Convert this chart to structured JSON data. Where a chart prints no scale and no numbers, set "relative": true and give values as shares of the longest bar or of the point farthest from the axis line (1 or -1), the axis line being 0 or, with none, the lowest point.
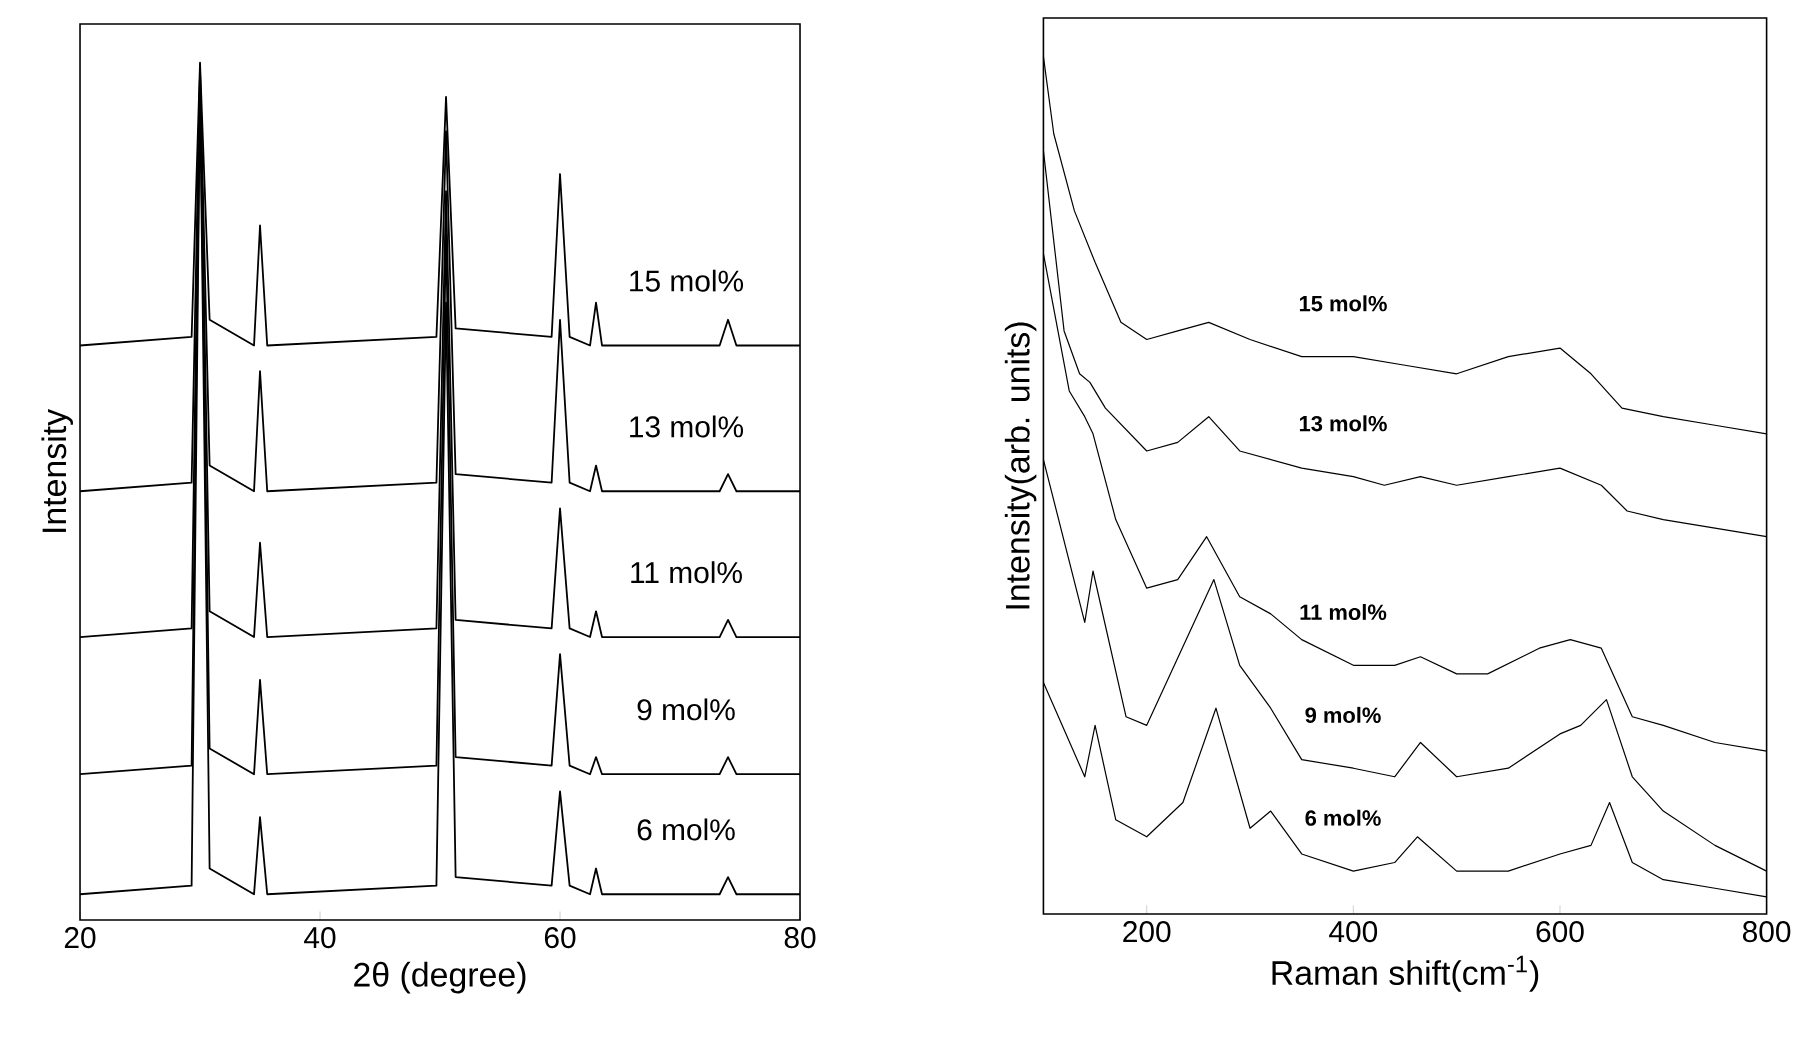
{
  "chart_data": [
    {
      "type": "line",
      "relative": true,
      "xlabel": "2θ (degree)",
      "ylabel": "Intensity",
      "xlim": [
        20,
        80
      ],
      "xticks": [
        20,
        40,
        60,
        80
      ],
      "x": [
        20,
        29.3,
        30,
        30.8,
        34.5,
        35,
        35.6,
        49.7,
        50.5,
        51.3,
        59.3,
        60,
        60.8,
        62.5,
        63,
        63.5,
        73.3,
        74,
        74.7,
        80
      ],
      "series": [
        {
          "name": "15 mol%",
          "color": "#000000",
          "values": [
            0.67,
            0.68,
            1.0,
            0.7,
            0.67,
            0.81,
            0.67,
            0.68,
            0.96,
            0.69,
            0.68,
            0.87,
            0.68,
            0.67,
            0.72,
            0.67,
            0.67,
            0.7,
            0.67,
            0.67
          ]
        },
        {
          "name": "13 mol%",
          "color": "#000000",
          "values": [
            0.5,
            0.51,
            0.99,
            0.53,
            0.5,
            0.64,
            0.5,
            0.51,
            0.92,
            0.52,
            0.51,
            0.7,
            0.51,
            0.5,
            0.53,
            0.5,
            0.5,
            0.52,
            0.5,
            0.5
          ]
        },
        {
          "name": "11 mol%",
          "color": "#000000",
          "values": [
            0.33,
            0.34,
            0.99,
            0.36,
            0.33,
            0.44,
            0.33,
            0.34,
            0.85,
            0.35,
            0.34,
            0.48,
            0.34,
            0.33,
            0.36,
            0.33,
            0.33,
            0.35,
            0.33,
            0.33
          ]
        },
        {
          "name": "9 mol%",
          "color": "#000000",
          "values": [
            0.17,
            0.18,
            0.98,
            0.2,
            0.17,
            0.28,
            0.17,
            0.18,
            0.8,
            0.19,
            0.18,
            0.31,
            0.18,
            0.17,
            0.19,
            0.17,
            0.17,
            0.19,
            0.17,
            0.17
          ]
        },
        {
          "name": "6 mol%",
          "color": "#000000",
          "values": [
            0.03,
            0.04,
            0.97,
            0.06,
            0.03,
            0.12,
            0.03,
            0.04,
            0.72,
            0.05,
            0.04,
            0.15,
            0.04,
            0.03,
            0.06,
            0.03,
            0.03,
            0.05,
            0.03,
            0.03
          ]
        }
      ]
    },
    {
      "type": "line",
      "relative": true,
      "xlabel": "Raman shift(cm$^{-1}$)",
      "ylabel": "Intensity(arb. units)",
      "xlim": [
        100,
        800
      ],
      "xticks": [
        200,
        400,
        600,
        800
      ],
      "series": [
        {
          "name": "15 mol%",
          "color": "#000000",
          "x": [
            100,
            110,
            130,
            150,
            175,
            200,
            230,
            260,
            300,
            350,
            400,
            450,
            500,
            550,
            600,
            630,
            660,
            700,
            750,
            800
          ],
          "values": [
            1.0,
            0.91,
            0.82,
            0.76,
            0.69,
            0.67,
            0.68,
            0.69,
            0.67,
            0.65,
            0.65,
            0.64,
            0.63,
            0.65,
            0.66,
            0.63,
            0.59,
            0.58,
            0.57,
            0.56
          ]
        },
        {
          "name": "13 mol%",
          "color": "#000000",
          "x": [
            100,
            120,
            135,
            145,
            160,
            200,
            230,
            260,
            290,
            350,
            400,
            430,
            465,
            500,
            550,
            600,
            640,
            665,
            700,
            750,
            800
          ],
          "values": [
            0.89,
            0.68,
            0.63,
            0.62,
            0.59,
            0.54,
            0.55,
            0.58,
            0.54,
            0.52,
            0.51,
            0.5,
            0.51,
            0.5,
            0.51,
            0.52,
            0.5,
            0.47,
            0.46,
            0.45,
            0.44
          ]
        },
        {
          "name": "11 mol%",
          "color": "#000000",
          "x": [
            100,
            125,
            140,
            148,
            170,
            200,
            230,
            258,
            290,
            320,
            350,
            400,
            440,
            465,
            500,
            530,
            580,
            610,
            640,
            670,
            700,
            750,
            800
          ],
          "values": [
            0.77,
            0.61,
            0.58,
            0.56,
            0.46,
            0.38,
            0.39,
            0.44,
            0.37,
            0.35,
            0.32,
            0.29,
            0.29,
            0.3,
            0.28,
            0.28,
            0.31,
            0.32,
            0.31,
            0.23,
            0.22,
            0.2,
            0.19
          ]
        },
        {
          "name": "9 mol%",
          "color": "#000000",
          "x": [
            100,
            140,
            148,
            180,
            200,
            265,
            290,
            320,
            350,
            400,
            440,
            465,
            500,
            550,
            600,
            620,
            645,
            670,
            700,
            750,
            800
          ],
          "values": [
            0.53,
            0.34,
            0.4,
            0.23,
            0.22,
            0.39,
            0.29,
            0.24,
            0.18,
            0.17,
            0.16,
            0.2,
            0.16,
            0.17,
            0.21,
            0.22,
            0.25,
            0.16,
            0.12,
            0.08,
            0.05
          ]
        },
        {
          "name": "6 mol%",
          "color": "#000000",
          "x": [
            100,
            140,
            150,
            170,
            200,
            235,
            267,
            300,
            320,
            350,
            400,
            440,
            462,
            500,
            550,
            600,
            630,
            648,
            670,
            700,
            750,
            800
          ],
          "values": [
            0.27,
            0.16,
            0.22,
            0.11,
            0.09,
            0.13,
            0.24,
            0.1,
            0.12,
            0.07,
            0.05,
            0.06,
            0.09,
            0.05,
            0.05,
            0.07,
            0.08,
            0.13,
            0.06,
            0.04,
            0.03,
            0.02
          ]
        }
      ]
    }
  ]
}
